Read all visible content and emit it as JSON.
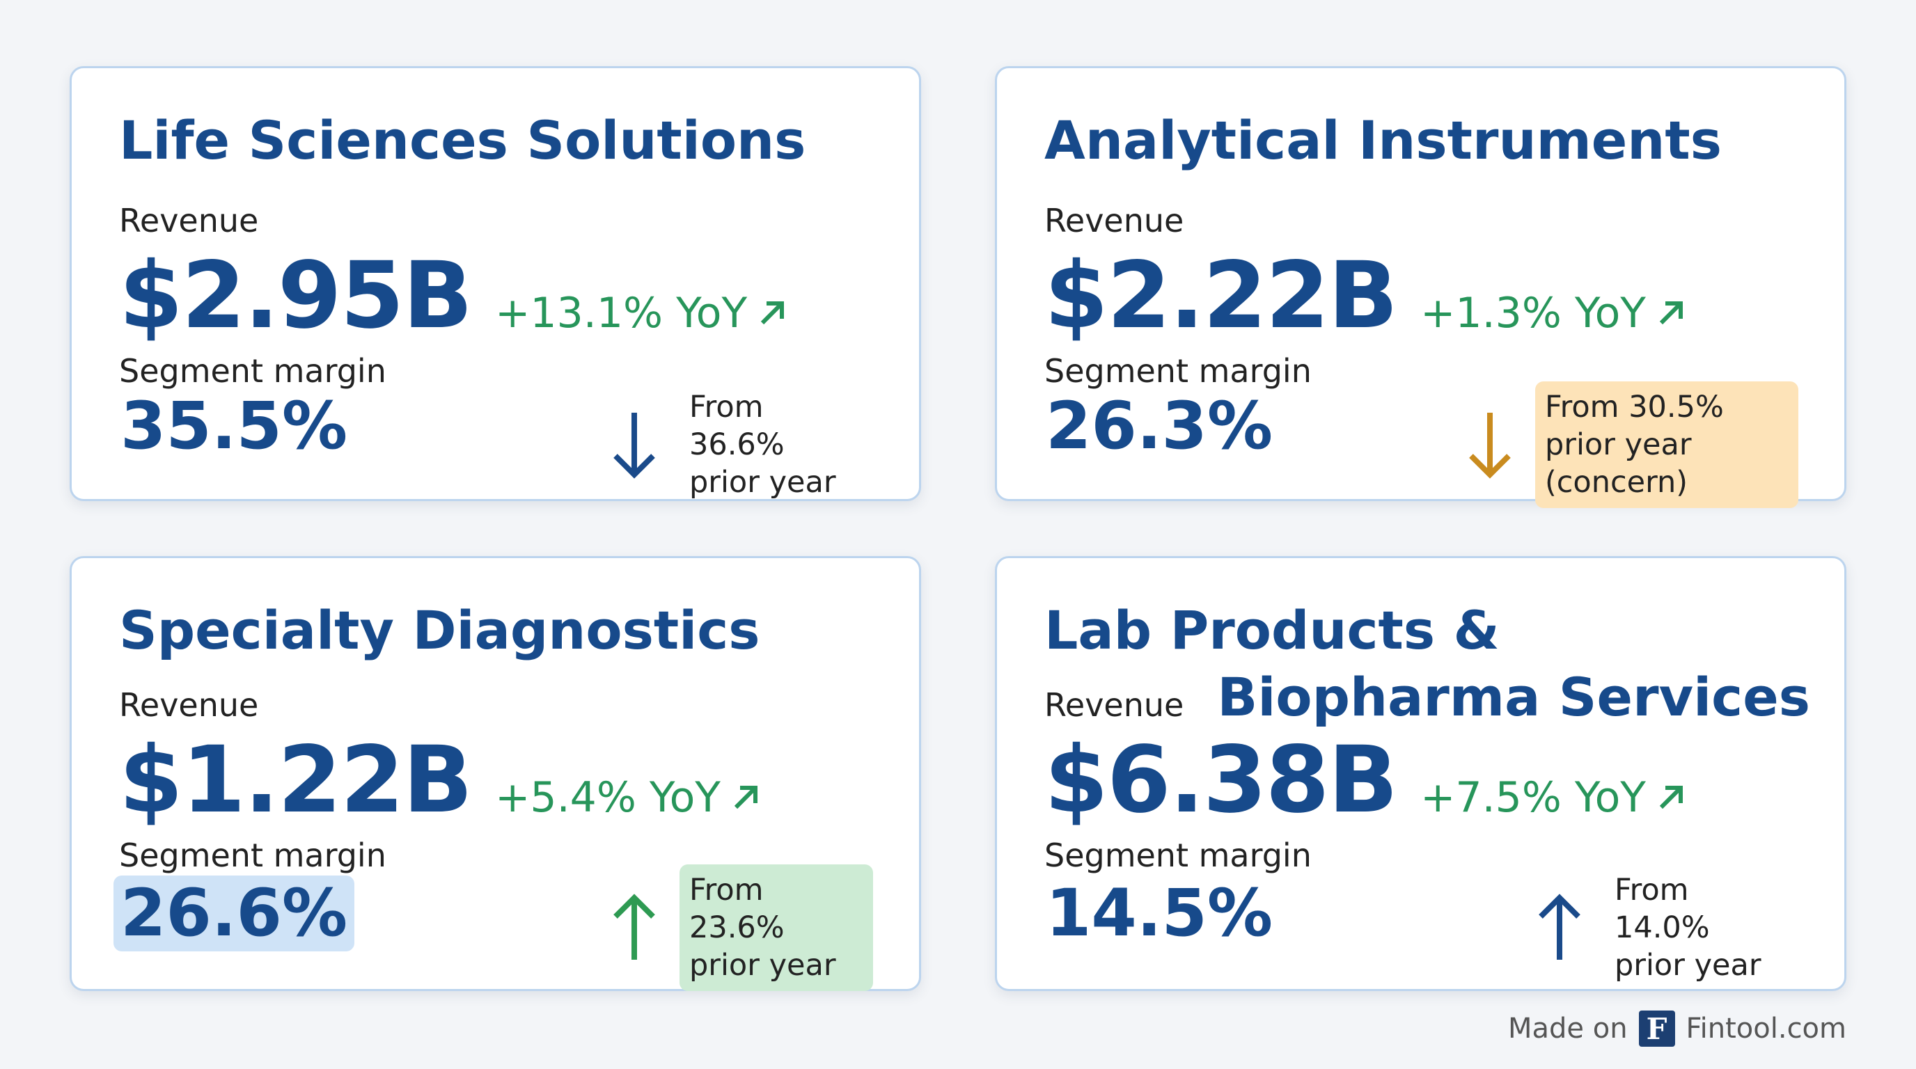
{
  "cards": [
    {
      "title": "Life Sciences Solutions",
      "revenue_label": "Revenue",
      "revenue": "$2.95B",
      "yoy": "+13.1% YoY",
      "margin_label": "Segment margin",
      "margin": "35.5%",
      "note": "From 36.6% prior year"
    },
    {
      "title": "Analytical Instruments",
      "revenue_label": "Revenue",
      "revenue": "$2.22B",
      "yoy": "+1.3% YoY",
      "margin_label": "Segment margin",
      "margin": "26.3%",
      "note": "From 30.5% prior year (concern)"
    },
    {
      "title": "Specialty Diagnostics",
      "revenue_label": "Revenue",
      "revenue": "$1.22B",
      "yoy": "+5.4% YoY",
      "margin_label": "Segment margin",
      "margin": "26.6%",
      "note": "From 23.6% prior year"
    },
    {
      "title": "Lab Products & Biopharma Services",
      "revenue_label": "Revenue",
      "revenue": "$6.38B",
      "yoy": "+7.5% YoY",
      "margin_label": "Segment margin",
      "margin": "14.5%",
      "note": "From 14.0% prior year"
    }
  ],
  "footer": {
    "made_on": "Made on",
    "logo": "F",
    "brand": "Fintool.com"
  }
}
